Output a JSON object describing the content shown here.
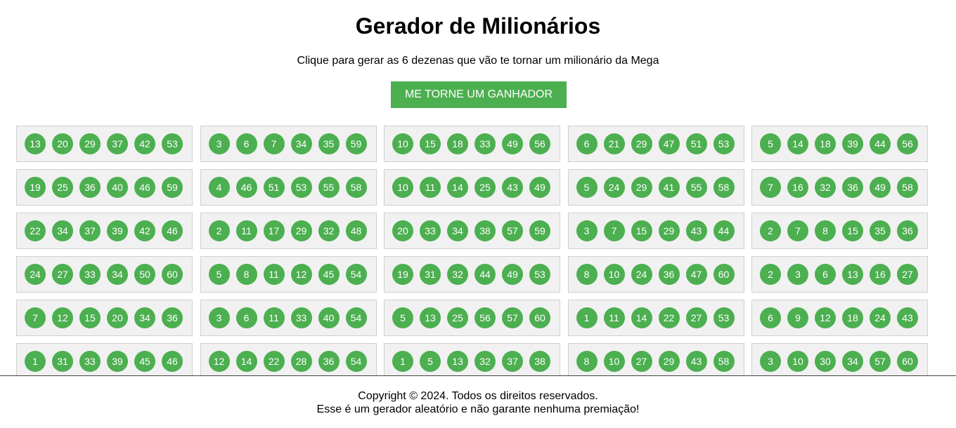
{
  "header": {
    "title": "Gerador de Milionários",
    "subtitle": "Clique para gerar as 6 dezenas que vão te tornar um milionário da Mega",
    "button_label": "ME TORNE UM GANHADOR"
  },
  "colors": {
    "accent": "#4caf50",
    "card_background": "#f1f1f1",
    "card_border": "#cfcfcf"
  },
  "games": [
    [
      "13",
      "20",
      "29",
      "37",
      "42",
      "53"
    ],
    [
      "3",
      "6",
      "7",
      "34",
      "35",
      "59"
    ],
    [
      "10",
      "15",
      "18",
      "33",
      "49",
      "56"
    ],
    [
      "6",
      "21",
      "29",
      "47",
      "51",
      "53"
    ],
    [
      "5",
      "14",
      "18",
      "39",
      "44",
      "56"
    ],
    [
      "19",
      "25",
      "36",
      "40",
      "46",
      "59"
    ],
    [
      "4",
      "46",
      "51",
      "53",
      "55",
      "58"
    ],
    [
      "10",
      "11",
      "14",
      "25",
      "43",
      "49"
    ],
    [
      "5",
      "24",
      "29",
      "41",
      "55",
      "58"
    ],
    [
      "7",
      "16",
      "32",
      "36",
      "49",
      "58"
    ],
    [
      "22",
      "34",
      "37",
      "39",
      "42",
      "46"
    ],
    [
      "2",
      "11",
      "17",
      "29",
      "32",
      "48"
    ],
    [
      "20",
      "33",
      "34",
      "38",
      "57",
      "59"
    ],
    [
      "3",
      "7",
      "15",
      "29",
      "43",
      "44"
    ],
    [
      "2",
      "7",
      "8",
      "15",
      "35",
      "36"
    ],
    [
      "24",
      "27",
      "33",
      "34",
      "50",
      "60"
    ],
    [
      "5",
      "8",
      "11",
      "12",
      "45",
      "54"
    ],
    [
      "19",
      "31",
      "32",
      "44",
      "49",
      "53"
    ],
    [
      "8",
      "10",
      "24",
      "36",
      "47",
      "60"
    ],
    [
      "2",
      "3",
      "6",
      "13",
      "16",
      "27"
    ],
    [
      "7",
      "12",
      "15",
      "20",
      "34",
      "36"
    ],
    [
      "3",
      "6",
      "11",
      "33",
      "40",
      "54"
    ],
    [
      "5",
      "13",
      "25",
      "56",
      "57",
      "60"
    ],
    [
      "1",
      "11",
      "14",
      "22",
      "27",
      "53"
    ],
    [
      "6",
      "9",
      "12",
      "18",
      "24",
      "43"
    ],
    [
      "1",
      "31",
      "33",
      "39",
      "45",
      "46"
    ],
    [
      "12",
      "14",
      "22",
      "28",
      "36",
      "54"
    ],
    [
      "1",
      "5",
      "13",
      "32",
      "37",
      "38"
    ],
    [
      "8",
      "10",
      "27",
      "29",
      "43",
      "58"
    ],
    [
      "3",
      "10",
      "30",
      "34",
      "57",
      "60"
    ]
  ],
  "footer": {
    "copyright": "Copyright © 2024. Todos os direitos reservados.",
    "disclaimer": "Esse é um gerador aleatório e não garante nenhuma premiação!"
  }
}
